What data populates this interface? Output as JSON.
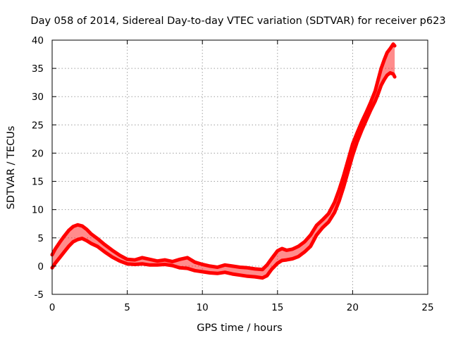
{
  "chart_data": {
    "type": "line",
    "title": "Day 058 of 2014, Sidereal Day-to-day VTEC variation (SDTVAR) for receiver p623",
    "xlabel": "GPS time / hours",
    "ylabel": "SDTVAR / TECUs",
    "xlim": [
      0,
      25
    ],
    "ylim": [
      -5,
      40
    ],
    "xticks": [
      0,
      5,
      10,
      15,
      20,
      25
    ],
    "yticks": [
      -5,
      0,
      5,
      10,
      15,
      20,
      25,
      30,
      35,
      40
    ],
    "grid": true,
    "series_color": "#ff0000",
    "series": [
      {
        "name": "upper envelope",
        "x": [
          0,
          0.2,
          0.5,
          0.8,
          1.1,
          1.4,
          1.7,
          2.0,
          2.3,
          2.6,
          3.0,
          3.5,
          4.0,
          4.5,
          5.0,
          5.5,
          6.0,
          6.5,
          7.0,
          7.5,
          8.0,
          8.5,
          9.0,
          9.5,
          10.0,
          10.5,
          11.0,
          11.5,
          12.0,
          12.5,
          13.0,
          13.5,
          14.0,
          14.3,
          14.6,
          15.0,
          15.3,
          15.6,
          16.0,
          16.4,
          16.8,
          17.2,
          17.6,
          18.0,
          18.4,
          18.8,
          19.1,
          19.4,
          19.7,
          20.0,
          20.3,
          20.6,
          20.9,
          21.2,
          21.5,
          21.7,
          21.9,
          22.1,
          22.3,
          22.5,
          22.7,
          22.8
        ],
        "y": [
          2.0,
          3.0,
          4.2,
          5.3,
          6.3,
          7.0,
          7.3,
          7.1,
          6.5,
          5.7,
          4.9,
          3.8,
          2.8,
          1.9,
          1.2,
          1.1,
          1.5,
          1.2,
          0.9,
          1.1,
          0.8,
          1.2,
          1.5,
          0.7,
          0.3,
          0.0,
          -0.2,
          0.2,
          0.0,
          -0.2,
          -0.3,
          -0.5,
          -0.6,
          0.2,
          1.3,
          2.7,
          3.1,
          2.8,
          3.0,
          3.5,
          4.3,
          5.5,
          7.2,
          8.2,
          9.3,
          11.3,
          13.5,
          16.0,
          18.8,
          21.6,
          23.6,
          25.5,
          27.2,
          29.0,
          31.0,
          33.0,
          35.0,
          36.5,
          37.8,
          38.5,
          39.3,
          39.0
        ]
      },
      {
        "name": "lower envelope",
        "x": [
          0,
          0.2,
          0.5,
          0.8,
          1.1,
          1.4,
          1.7,
          2.0,
          2.3,
          2.6,
          3.0,
          3.5,
          4.0,
          4.5,
          5.0,
          5.5,
          6.0,
          6.5,
          7.0,
          7.5,
          8.0,
          8.5,
          9.0,
          9.5,
          10.0,
          10.5,
          11.0,
          11.5,
          12.0,
          12.5,
          13.0,
          13.5,
          14.0,
          14.3,
          14.6,
          15.0,
          15.3,
          15.6,
          16.0,
          16.4,
          16.8,
          17.2,
          17.6,
          18.0,
          18.4,
          18.8,
          19.1,
          19.4,
          19.7,
          20.0,
          20.3,
          20.6,
          20.9,
          21.2,
          21.5,
          21.7,
          21.9,
          22.1,
          22.3,
          22.5,
          22.7,
          22.8
        ],
        "y": [
          -0.3,
          0.5,
          1.5,
          2.5,
          3.5,
          4.3,
          4.7,
          4.9,
          4.5,
          4.0,
          3.5,
          2.5,
          1.6,
          0.9,
          0.4,
          0.3,
          0.4,
          0.2,
          0.2,
          0.3,
          0.1,
          -0.3,
          -0.4,
          -0.8,
          -1.0,
          -1.2,
          -1.3,
          -1.1,
          -1.4,
          -1.6,
          -1.8,
          -1.9,
          -2.1,
          -1.7,
          -0.6,
          0.5,
          1.0,
          1.1,
          1.3,
          1.7,
          2.5,
          3.5,
          5.5,
          6.8,
          7.8,
          9.5,
          11.5,
          14.0,
          16.8,
          19.6,
          22.0,
          24.0,
          25.8,
          27.6,
          29.2,
          30.5,
          32.0,
          33.0,
          33.8,
          34.2,
          34.0,
          33.5
        ]
      }
    ]
  }
}
